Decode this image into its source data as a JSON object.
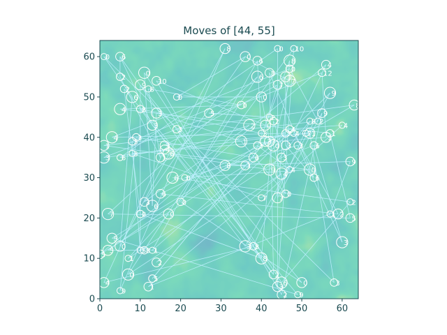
{
  "chart_data": {
    "type": "scatter",
    "title": "Moves of [44, 55]",
    "xlabel": "",
    "ylabel": "",
    "xlim": [
      0,
      64
    ],
    "ylim": [
      0,
      64
    ],
    "x_ticks": [
      0,
      10,
      20,
      30,
      40,
      50,
      60
    ],
    "y_ticks": [
      0,
      10,
      20,
      30,
      40,
      50,
      60
    ],
    "grid": false,
    "background": "terrain heatmap (viridis-like: dark blue low, teal mid, yellow-green high)",
    "colors": {
      "heat_low": "#2c5f92",
      "heat_mid": "#2aa38a",
      "heat_high": "#a8da4a",
      "marker": "#ffffff",
      "line": "#bfefff",
      "axis_text": "#1a4a50"
    },
    "points": [
      {
        "x": 44,
        "y": 62,
        "label": "0",
        "to": 4
      },
      {
        "x": 42,
        "y": 56,
        "label": "8",
        "to": 6
      },
      {
        "x": 47,
        "y": 54,
        "label": "7",
        "to": 9
      },
      {
        "x": 43,
        "y": 44,
        "label": "2",
        "to": 12
      },
      {
        "x": 44,
        "y": 3,
        "label": "3",
        "to": 15
      },
      {
        "x": 48,
        "y": 41,
        "label": "4",
        "to": 16
      },
      {
        "x": 43,
        "y": 6,
        "label": "2",
        "to": 21
      },
      {
        "x": 45,
        "y": 4,
        "label": "6",
        "to": 22
      },
      {
        "x": 57,
        "y": 41,
        "label": "1",
        "to": 27
      },
      {
        "x": 36,
        "y": 60,
        "label": "0",
        "to": 30
      },
      {
        "x": 54,
        "y": 44,
        "label": "2",
        "to": 34
      },
      {
        "x": 44,
        "y": 53,
        "label": "7",
        "to": 36
      },
      {
        "x": 40,
        "y": 10,
        "label": "8",
        "to": 38
      },
      {
        "x": 49,
        "y": 38,
        "label": "3",
        "to": 40
      },
      {
        "x": 42,
        "y": 39,
        "label": "7",
        "to": 41
      },
      {
        "x": 48,
        "y": 62,
        "label": "10",
        "to": 43
      },
      {
        "x": 56,
        "y": 58,
        "label": "4",
        "to": 46
      },
      {
        "x": 45,
        "y": 31,
        "label": "4",
        "to": 47
      },
      {
        "x": 38,
        "y": 13,
        "label": "8",
        "to": 49
      },
      {
        "x": 31,
        "y": 62,
        "label": "8",
        "to": 50
      },
      {
        "x": 1,
        "y": 60,
        "label": "0",
        "to": 52
      },
      {
        "x": 5,
        "y": 60,
        "label": "6",
        "to": 54
      },
      {
        "x": 11,
        "y": 56,
        "label": "0",
        "to": 57
      },
      {
        "x": 6,
        "y": 52,
        "label": "2",
        "to": 58
      },
      {
        "x": 10,
        "y": 53,
        "label": "9",
        "to": 60
      },
      {
        "x": 12,
        "y": 52,
        "label": "8",
        "to": 61
      },
      {
        "x": 14,
        "y": 54,
        "label": "10",
        "to": 64
      },
      {
        "x": 5,
        "y": 47,
        "label": "4",
        "to": 63
      },
      {
        "x": 10,
        "y": 47,
        "label": "8",
        "to": 65
      },
      {
        "x": 14,
        "y": 46,
        "label": "3",
        "to": 67
      },
      {
        "x": 19,
        "y": 50,
        "label": "0",
        "to": 69
      },
      {
        "x": 27,
        "y": 46,
        "label": "5",
        "to": 70
      },
      {
        "x": 3,
        "y": 40,
        "label": "4",
        "to": 73
      },
      {
        "x": 8,
        "y": 39,
        "label": "3",
        "to": 74
      },
      {
        "x": 1,
        "y": 38,
        "label": "1",
        "to": 77
      },
      {
        "x": 8,
        "y": 36,
        "label": "3",
        "to": 80
      },
      {
        "x": 16,
        "y": 38,
        "label": "3",
        "to": 84
      },
      {
        "x": 1,
        "y": 35,
        "label": "3",
        "to": 88
      },
      {
        "x": 19,
        "y": 42,
        "label": "3",
        "to": 89
      },
      {
        "x": 31,
        "y": 33,
        "label": "8",
        "to": 91
      },
      {
        "x": 21,
        "y": 30,
        "label": "0",
        "to": 92
      },
      {
        "x": 15,
        "y": 26,
        "label": "6",
        "to": 94
      },
      {
        "x": 2,
        "y": 21,
        "label": "7",
        "to": 96
      },
      {
        "x": 20,
        "y": 24,
        "label": "0",
        "to": 99
      },
      {
        "x": 3,
        "y": 15,
        "label": "5",
        "to": 100
      },
      {
        "x": 13,
        "y": 12,
        "label": "1",
        "to": 103
      },
      {
        "x": 0,
        "y": 11,
        "label": "5",
        "to": 106
      },
      {
        "x": 7,
        "y": 6,
        "label": "0",
        "to": 107
      },
      {
        "x": 13,
        "y": 5,
        "label": "5",
        "to": 109
      },
      {
        "x": 1,
        "y": 4,
        "label": "4",
        "to": 111
      },
      {
        "x": 5,
        "y": 2,
        "label": "9",
        "to": 113
      },
      {
        "x": 12,
        "y": 3,
        "label": "1",
        "to": 17
      },
      {
        "x": 8,
        "y": 50,
        "label": "6",
        "to": 59
      },
      {
        "x": 5,
        "y": 55,
        "label": "2",
        "to": 21
      },
      {
        "x": 13,
        "y": 43,
        "label": "3",
        "to": 6
      },
      {
        "x": 5,
        "y": 35,
        "label": "6",
        "to": 0
      },
      {
        "x": 11,
        "y": 24,
        "label": "3",
        "to": 9
      },
      {
        "x": 13,
        "y": 23,
        "label": "6",
        "to": 29
      },
      {
        "x": 10,
        "y": 21,
        "label": "0",
        "to": 12
      },
      {
        "x": 5,
        "y": 13,
        "label": "0",
        "to": 19
      },
      {
        "x": 10,
        "y": 12,
        "label": "5",
        "to": 33
      },
      {
        "x": 15,
        "y": 35,
        "label": "1",
        "to": 53
      },
      {
        "x": 37,
        "y": 43,
        "label": "2",
        "to": 56
      },
      {
        "x": 35,
        "y": 48,
        "label": "0",
        "to": 25
      },
      {
        "x": 41,
        "y": 43,
        "label": "0",
        "to": 11
      },
      {
        "x": 40,
        "y": 41,
        "label": "3",
        "to": 71
      },
      {
        "x": 38,
        "y": 35,
        "label": "6",
        "to": 72
      },
      {
        "x": 35,
        "y": 39,
        "label": "1",
        "to": 78
      },
      {
        "x": 39,
        "y": 38,
        "label": "3",
        "to": 75
      },
      {
        "x": 40,
        "y": 50,
        "label": "0",
        "to": 14
      },
      {
        "x": 42,
        "y": 45,
        "label": "2",
        "to": 31
      },
      {
        "x": 39,
        "y": 59,
        "label": "6",
        "to": 45
      },
      {
        "x": 47,
        "y": 59,
        "label": "8",
        "to": 79
      },
      {
        "x": 47,
        "y": 57,
        "label": "0",
        "to": 10
      },
      {
        "x": 46,
        "y": 55,
        "label": "1",
        "to": 81
      },
      {
        "x": 47,
        "y": 32,
        "label": "4",
        "to": 3
      },
      {
        "x": 45,
        "y": 35,
        "label": "3",
        "to": 83
      },
      {
        "x": 42,
        "y": 32,
        "label": "9",
        "to": 85
      },
      {
        "x": 46,
        "y": 26,
        "label": "0",
        "to": 82
      },
      {
        "x": 44,
        "y": 25,
        "label": "7",
        "to": 86
      },
      {
        "x": 40,
        "y": 25,
        "label": "7",
        "to": 90
      },
      {
        "x": 46,
        "y": 38,
        "label": "3",
        "to": 93
      },
      {
        "x": 43,
        "y": 38,
        "label": "0",
        "to": 2
      },
      {
        "x": 53,
        "y": 38,
        "label": "6",
        "to": 97
      },
      {
        "x": 52,
        "y": 41,
        "label": "1",
        "to": 98
      },
      {
        "x": 52,
        "y": 44,
        "label": "8",
        "to": 18
      },
      {
        "x": 55,
        "y": 46,
        "label": "9",
        "to": 101
      },
      {
        "x": 57,
        "y": 51,
        "label": "9",
        "to": 102
      },
      {
        "x": 55,
        "y": 56,
        "label": "12",
        "to": 104
      },
      {
        "x": 63,
        "y": 48,
        "label": "8",
        "to": 105
      },
      {
        "x": 60,
        "y": 43,
        "label": "4",
        "to": 108
      },
      {
        "x": 62,
        "y": 34,
        "label": "9",
        "to": 110
      },
      {
        "x": 52,
        "y": 32,
        "label": "0",
        "to": 112
      },
      {
        "x": 53,
        "y": 30,
        "label": "6",
        "to": 1
      },
      {
        "x": 59,
        "y": 21,
        "label": "2",
        "to": 5
      },
      {
        "x": 62,
        "y": 24,
        "label": "2",
        "to": 7
      },
      {
        "x": 62,
        "y": 20,
        "label": "5",
        "to": 8
      },
      {
        "x": 60,
        "y": 14,
        "label": "3",
        "to": 13
      },
      {
        "x": 58,
        "y": 4,
        "label": "3",
        "to": 20
      },
      {
        "x": 50,
        "y": 4,
        "label": "0",
        "to": 24
      },
      {
        "x": 49,
        "y": 1,
        "label": "9",
        "to": 23
      },
      {
        "x": 45,
        "y": 1,
        "label": "2",
        "to": 26
      },
      {
        "x": 36,
        "y": 13,
        "label": "3",
        "to": 28
      },
      {
        "x": 46,
        "y": 41,
        "label": "7",
        "to": 32
      },
      {
        "x": 56,
        "y": 40,
        "label": "1",
        "to": 35
      },
      {
        "x": 51,
        "y": 41,
        "label": "7",
        "to": 37
      },
      {
        "x": 36,
        "y": 33,
        "label": "1",
        "to": 39
      },
      {
        "x": 39,
        "y": 55,
        "label": "6",
        "to": 42
      },
      {
        "x": 47,
        "y": 42,
        "label": "4",
        "to": 44
      },
      {
        "x": 41,
        "y": 39,
        "label": "3",
        "to": 48
      },
      {
        "x": 57,
        "y": 21,
        "label": "1",
        "to": 51
      },
      {
        "x": 16,
        "y": 37,
        "label": "4",
        "to": 55
      },
      {
        "x": 17,
        "y": 36,
        "label": "6",
        "to": 62
      },
      {
        "x": 9,
        "y": 40,
        "label": "3",
        "to": 66
      },
      {
        "x": 2,
        "y": 12,
        "label": "5",
        "to": 68
      },
      {
        "x": 7,
        "y": 10,
        "label": "1",
        "to": 76
      },
      {
        "x": 14,
        "y": 9,
        "label": "2",
        "to": 87
      },
      {
        "x": 18,
        "y": 30,
        "label": "6",
        "to": 95
      },
      {
        "x": 11,
        "y": 12,
        "label": "8",
        "to": 114
      },
      {
        "x": 17,
        "y": 21,
        "label": "0",
        "to": 115
      }
    ]
  }
}
